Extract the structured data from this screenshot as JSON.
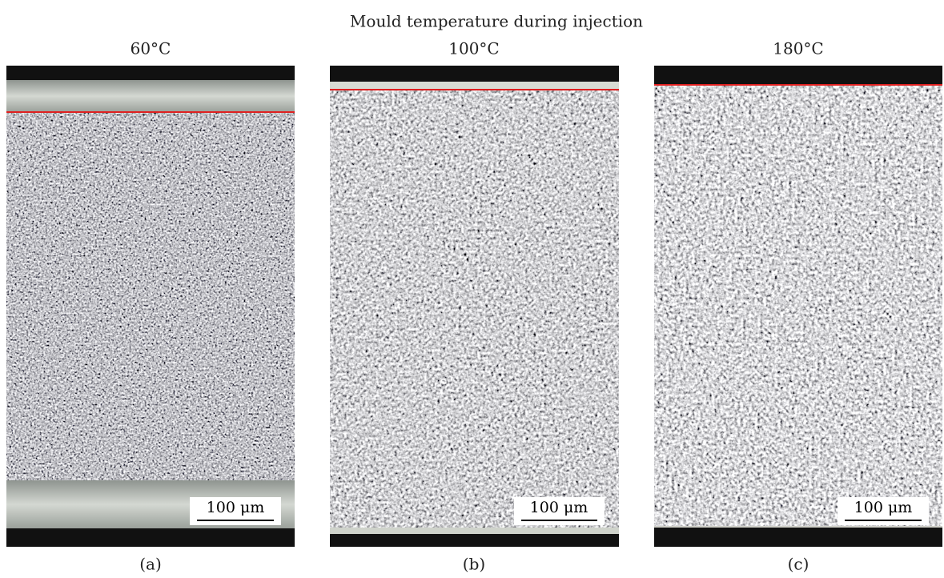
{
  "title": "Mould temperature during injection",
  "panels": [
    {
      "temperature": "60°C",
      "scale_bar": "100 μm",
      "label": "(a)"
    },
    {
      "temperature": "100°C",
      "scale_bar": "100 μm",
      "label": "(b)"
    },
    {
      "temperature": "180°C",
      "scale_bar": "100 μm",
      "label": "(c)"
    }
  ]
}
